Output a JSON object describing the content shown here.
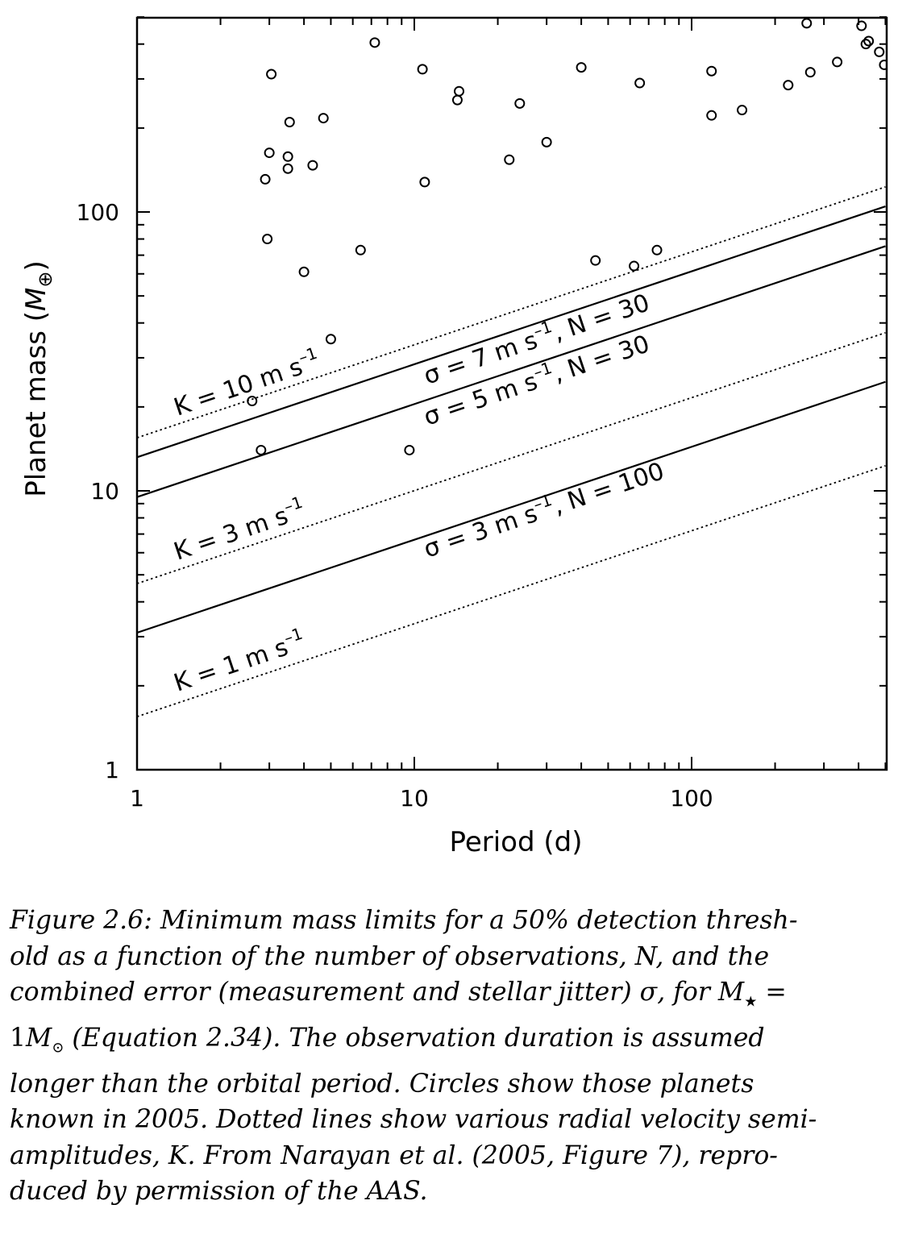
{
  "chart_data": {
    "type": "scatter",
    "title": "",
    "xlabel": "Period (d)",
    "ylabel_main": "Planet mass (",
    "ylabel_sym": "M",
    "ylabel_sub": "⊕",
    "ylabel_close": ")",
    "xscale": "log",
    "yscale": "log",
    "xlim": [
      1,
      500
    ],
    "ylim": [
      1,
      550
    ],
    "x_ticks": [
      {
        "value": 1,
        "label": "1"
      },
      {
        "value": 10,
        "label": "10"
      },
      {
        "value": 100,
        "label": "100"
      }
    ],
    "y_ticks": [
      {
        "value": 1,
        "label": "1"
      },
      {
        "value": 10,
        "label": "10"
      },
      {
        "value": 100,
        "label": "100"
      }
    ],
    "grid": false,
    "lines": [
      {
        "style": "dotted",
        "label": "K = 10 m s",
        "sup": "–1",
        "y_at_x1": 15.5,
        "slope": 0.3333
      },
      {
        "style": "dotted",
        "label": "K = 3 m s",
        "sup": "–1",
        "y_at_x1": 4.65,
        "slope": 0.3333
      },
      {
        "style": "dotted",
        "label": "K = 1 m s",
        "sup": "–1",
        "y_at_x1": 1.55,
        "slope": 0.3333
      },
      {
        "style": "solid",
        "label": "σ = 7 m s",
        "sup": "–1",
        "tail": ", N = 30",
        "y_at_x1": 13.2,
        "slope": 0.3333
      },
      {
        "style": "solid",
        "label": "σ = 5 m s",
        "sup": "–1",
        "tail": ", N = 30",
        "y_at_x1": 9.5,
        "slope": 0.3333
      },
      {
        "style": "solid",
        "label": "σ = 3 m s",
        "sup": "–1",
        "tail": ", N = 100",
        "y_at_x1": 3.1,
        "slope": 0.3333
      }
    ],
    "points": [
      [
        2.6,
        21
      ],
      [
        2.8,
        14
      ],
      [
        2.95,
        80
      ],
      [
        2.9,
        131
      ],
      [
        3.0,
        163
      ],
      [
        3.05,
        312
      ],
      [
        3.5,
        158
      ],
      [
        3.5,
        143
      ],
      [
        3.55,
        210
      ],
      [
        4.0,
        61
      ],
      [
        4.3,
        147
      ],
      [
        4.7,
        217
      ],
      [
        5.0,
        35
      ],
      [
        6.4,
        73
      ],
      [
        7.2,
        405
      ],
      [
        9.6,
        14
      ],
      [
        10.7,
        325
      ],
      [
        10.9,
        128
      ],
      [
        14.3,
        252
      ],
      [
        14.5,
        271
      ],
      [
        22.0,
        154
      ],
      [
        24.0,
        245
      ],
      [
        30.0,
        178
      ],
      [
        40.0,
        330
      ],
      [
        45.0,
        67
      ],
      [
        62.0,
        64
      ],
      [
        65.0,
        290
      ],
      [
        75.0,
        73
      ],
      [
        118.0,
        222
      ],
      [
        118.0,
        320
      ],
      [
        152.0,
        232
      ],
      [
        223.0,
        285
      ],
      [
        260.0,
        475
      ],
      [
        268.0,
        317
      ],
      [
        335.0,
        345
      ],
      [
        410.0,
        465
      ],
      [
        425.0,
        400
      ],
      [
        435.0,
        410
      ],
      [
        475.0,
        375
      ],
      [
        495.0,
        337
      ]
    ]
  },
  "caption": {
    "l1": "Figure 2.6: Minimum mass limits for a 50% detection thresh-",
    "l2a": "old as a function of the number of observations, ",
    "l2n": "N",
    "l2b": ", and the",
    "l3a": "combined error (measurement and stellar jitter) σ, for ",
    "l3m": "M",
    "l3s": "★",
    "l3b": " =",
    "l4a": "1",
    "l4m": "M",
    "l4s": "⊙",
    "l4b": " (Equation 2.34).  The observation duration is assumed",
    "l5": "longer than the orbital period.  Circles show those planets",
    "l6": "known in 2005. Dotted lines show various radial velocity semi-",
    "l7a": "amplitudes, ",
    "l7k": "K",
    "l7b": ".  From Narayan et al. (2005, Figure 7), repro-",
    "l8": "duced by permission of the AAS."
  }
}
